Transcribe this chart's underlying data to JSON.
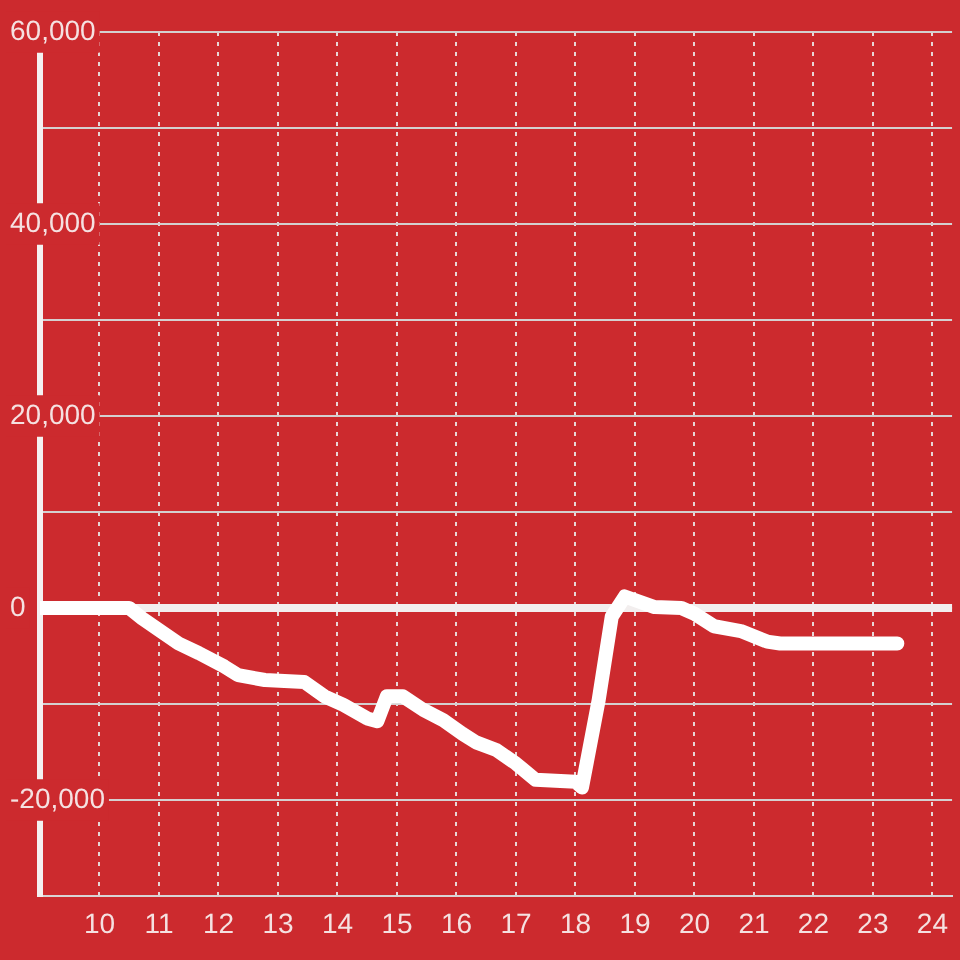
{
  "chart_data": {
    "type": "line",
    "x": [
      9,
      10.5,
      10.72,
      11,
      11.33,
      11.67,
      12.1,
      12.33,
      12.78,
      13.44,
      13.78,
      14.1,
      14.5,
      14.67,
      14.83,
      15.1,
      15.44,
      15.78,
      16.1,
      16.33,
      16.67,
      17,
      17.33,
      18,
      18.11,
      18.39,
      18.61,
      18.83,
      19.33,
      19.78,
      20,
      20.33,
      20.78,
      21.22,
      21.44,
      23.41
    ],
    "values": [
      0,
      0,
      -1100,
      -2300,
      -3700,
      -4700,
      -6100,
      -7000,
      -7500,
      -7700,
      -9200,
      -10100,
      -11500,
      -11800,
      -9200,
      -9200,
      -10600,
      -11700,
      -13100,
      -14000,
      -14800,
      -16200,
      -17900,
      -18100,
      -18700,
      -9600,
      -900,
      1200,
      100,
      0,
      -600,
      -1900,
      -2400,
      -3500,
      -3700,
      -3700
    ],
    "color": "#ffffff",
    "xlim": [
      9,
      24.33
    ],
    "xticks": [
      10,
      11,
      12,
      13,
      14,
      15,
      16,
      17,
      18,
      19,
      20,
      21,
      22,
      23,
      24
    ],
    "ylim": [
      -30000,
      60000
    ],
    "yticks": [
      {
        "value": -20000,
        "label": "-20,000"
      },
      {
        "value": -10000,
        "label": null
      },
      0,
      {
        "value": 10000,
        "label": null
      },
      {
        "value": 20000,
        "label": "20,000"
      },
      {
        "value": 30000,
        "label": null
      },
      {
        "value": 40000,
        "label": "40,000"
      },
      {
        "value": 50000,
        "label": null
      },
      {
        "value": 60000,
        "label": "60,000"
      }
    ],
    "ref_lines": [
      {
        "axis": "y",
        "value": 0,
        "color": "#f2eeee"
      }
    ],
    "grid": true,
    "legend": false,
    "marker": "none",
    "line_style": "solid"
  }
}
